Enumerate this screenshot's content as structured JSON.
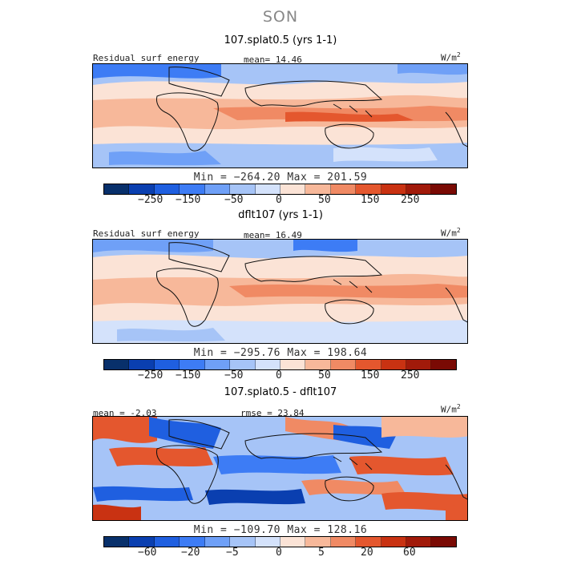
{
  "season": "SON",
  "colors": [
    "#08306b",
    "#0a3fb0",
    "#1f5fe0",
    "#3d7cf5",
    "#6fa0f7",
    "#a6c4f7",
    "#d4e2fb",
    "#fbe3d6",
    "#f7b89a",
    "#f08a64",
    "#e4572e",
    "#c93212",
    "#a11a0a",
    "#7a0a04"
  ],
  "units": "W/m",
  "units_sup": "2",
  "panels": [
    {
      "title": "107.splat0.5 (yrs 1-1)",
      "variable": "Residual surf energy",
      "stat_left": "",
      "stat_mid": "mean=  14.46",
      "minmax": "Min = −264.20 Max = 201.59",
      "colorbar_ticks": [
        "−250",
        "−150",
        "−50",
        "0",
        "50",
        "150",
        "250"
      ]
    },
    {
      "title": "dflt107 (yrs 1-1)",
      "variable": "Residual surf energy",
      "stat_left": "",
      "stat_mid": "mean=  16.49",
      "minmax": "Min = −295.76 Max = 198.64",
      "colorbar_ticks": [
        "−250",
        "−150",
        "−50",
        "0",
        "50",
        "150",
        "250"
      ]
    },
    {
      "title": "107.splat0.5 - dflt107",
      "variable": "",
      "stat_left": "mean =  -2.03",
      "stat_mid": "rmse =  23.84",
      "minmax": "Min = −109.70 Max = 128.16",
      "colorbar_ticks": [
        "−60",
        "−20",
        "−5",
        "0",
        "5",
        "20",
        "60"
      ]
    }
  ]
}
